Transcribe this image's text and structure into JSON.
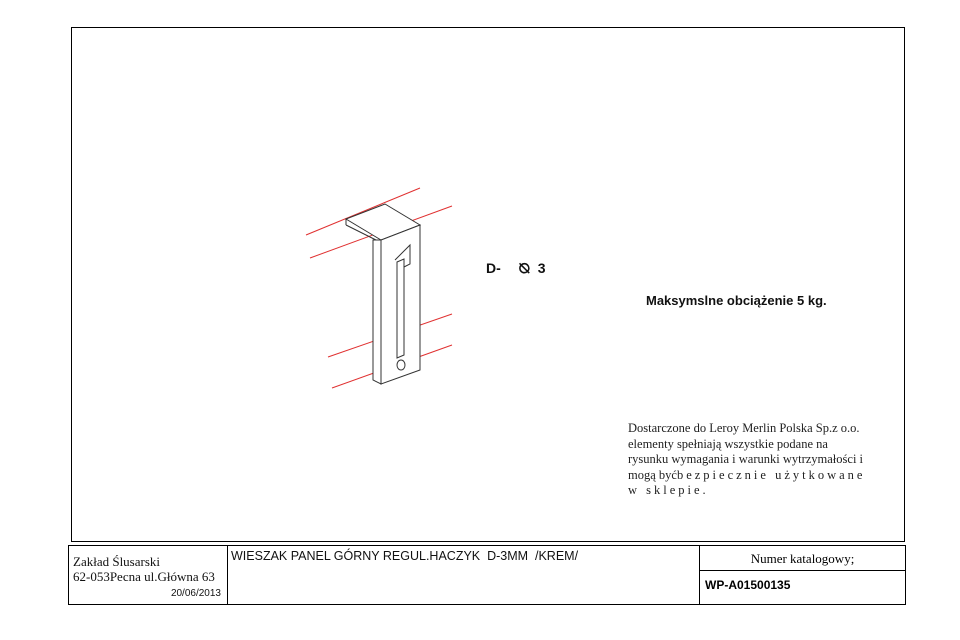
{
  "drawing": {
    "dimension_prefix": "D-",
    "diameter_symbol": "⦰",
    "dimension_value": "3",
    "max_load": "Maksymslne obciążenie 5 kg.",
    "note_lines": [
      "Dostarczone do Leroy Merlin Polska Sp.z o.o.",
      "elementy spełniają wszystkie podane na",
      "rysunku wymagania i warunki wytrzymałości i"
    ],
    "note_line4_start": "mogą być",
    "note_line4_spaced": "bezpiecznie użytkowane",
    "note_line5": "w sklepie."
  },
  "title_block": {
    "company_line1": "Zakład Ślusarski",
    "company_line2": "62-053Pecna ul.Główna 63",
    "date": "20/06/2013",
    "product_name": "WIESZAK PANEL GÓRNY REGUL.HACZYK  D-3MM  /KREM/",
    "catalog_label": "Numer katalogowy;",
    "catalog_number": "WP-A01500135"
  },
  "colors": {
    "line": "#000000",
    "red_line": "#e03030",
    "part_line": "#333333"
  }
}
